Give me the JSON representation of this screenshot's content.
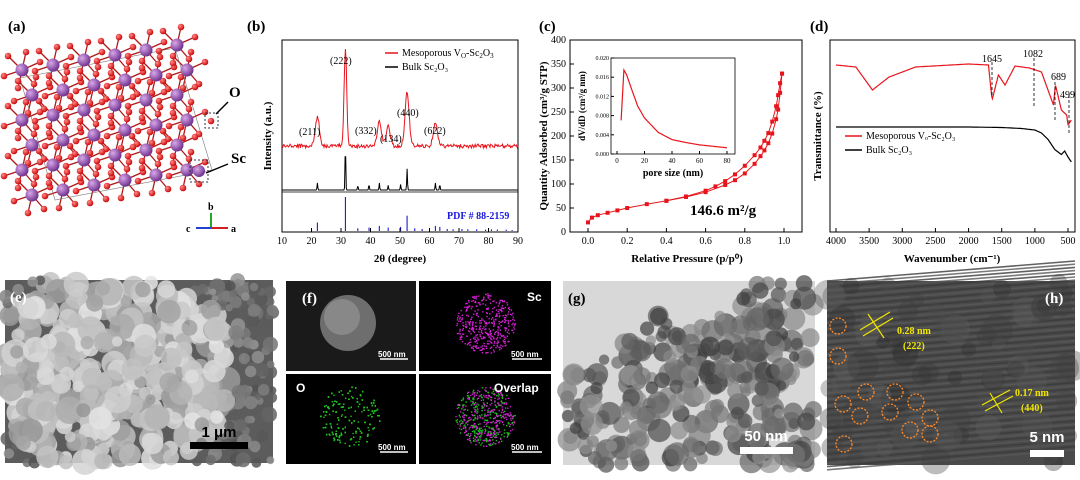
{
  "panels": {
    "a": {
      "label": "(a)",
      "atom_o": "O",
      "atom_sc": "Sc",
      "axis_b": "b",
      "axis_c": "c",
      "axis_a": "a"
    },
    "b": {
      "label": "(b)",
      "legend": [
        "Mesoporous V",
        "O",
        "-Sc",
        "2",
        "O",
        "3"
      ],
      "legend_bulk": "Bulk Sc₂O₃",
      "peaks": [
        "(222)",
        "(211)",
        "(332)",
        "(134)",
        "(440)",
        "(622)"
      ],
      "pdf": "PDF # 88-2159",
      "ylabel": "Intensity (a.u.)",
      "xlabel": "2θ (degree)",
      "xticks": [
        "10",
        "20",
        "30",
        "40",
        "50",
        "60",
        "70",
        "80",
        "90"
      ]
    },
    "c": {
      "label": "(c)",
      "ylabel": "Quantity Adsorbed (cm³/g STP)",
      "xlabel": "Relative Pressure (p/p⁰)",
      "yticks": [
        "0",
        "50",
        "100",
        "150",
        "200",
        "250",
        "300",
        "350",
        "400"
      ],
      "xticks": [
        "0.0",
        "0.2",
        "0.4",
        "0.6",
        "0.8",
        "1.0"
      ],
      "area": "146.6 m²/g",
      "inset_ylabel": "dV/dD (cm³/g nm)",
      "inset_xlabel": "pore size (nm)",
      "inset_yticks": [
        "0.000",
        "0.004",
        "0.008",
        "0.012",
        "0.016",
        "0.020"
      ],
      "inset_xticks": [
        "0",
        "20",
        "40",
        "60",
        "80"
      ]
    },
    "d": {
      "label": "(d)",
      "ylabel": "Transmittance (%)",
      "xlabel": "Wavenumber (cm⁻¹)",
      "xticks": [
        "4000",
        "3500",
        "3000",
        "2500",
        "2000",
        "1500",
        "1000",
        "500"
      ],
      "bands": [
        "1645",
        "1082",
        "689",
        "499"
      ],
      "legend_meso": "Mesoporous Vₒ-Sc₂O₃",
      "legend_bulk": "Bulk Sc₂O₃"
    },
    "e": {
      "label": "(e)",
      "scale": "1 μm"
    },
    "f": {
      "label": "(f)",
      "tiles": [
        "Sc",
        "O",
        "Overlap"
      ],
      "scale": "500 nm"
    },
    "g": {
      "label": "(g)",
      "scale": "50 nm"
    },
    "h": {
      "label": "(h)",
      "d1": "0.28 nm",
      "d1_plane": "(222)",
      "d2": "0.17 nm",
      "d2_plane": "(440)",
      "scale": "5 nm"
    }
  },
  "colors": {
    "meso": "#e8141c",
    "bulk": "#000000",
    "pdf": "#1a1adc",
    "inset": "#e8141c",
    "sc_map": "#d020d0",
    "o_map": "#20c020",
    "lattice": "#f2e600"
  },
  "chart_data": [
    {
      "type": "line",
      "panel": "b",
      "xlabel": "2θ (degree)",
      "ylabel": "Intensity (a.u.)",
      "xlim": [
        10,
        90
      ],
      "series": [
        {
          "name": "Mesoporous Vₒ-Sc₂O₃",
          "x": [
            22,
            31.5,
            43,
            46,
            52.4,
            62
          ],
          "values": [
            0.3,
            1.0,
            0.25,
            0.2,
            0.55,
            0.25
          ]
        },
        {
          "name": "Bulk Sc₂O₃",
          "x": [
            22,
            31.5,
            35.7,
            39.5,
            43,
            46,
            50.2,
            52.4,
            62,
            63.5
          ],
          "values": [
            0.15,
            1.0,
            0.1,
            0.12,
            0.15,
            0.1,
            0.12,
            0.45,
            0.15,
            0.12
          ]
        },
        {
          "name": "PDF # 88-2159",
          "x": [
            22,
            31.5,
            35.7,
            39.5,
            43,
            46,
            50.2,
            52.4,
            55,
            57.5,
            62,
            63.5,
            66,
            68,
            71,
            73,
            76,
            79,
            81,
            83,
            86,
            88
          ],
          "values": [
            0.25,
            1.0,
            0.08,
            0.1,
            0.15,
            0.1,
            0.12,
            0.45,
            0.08,
            0.06,
            0.15,
            0.12,
            0.06,
            0.05,
            0.06,
            0.05,
            0.05,
            0.04,
            0.05,
            0.04,
            0.04,
            0.03
          ]
        }
      ]
    },
    {
      "type": "scatter",
      "panel": "c",
      "xlabel": "Relative Pressure (p/p⁰)",
      "ylabel": "Quantity Adsorbed (cm³/g STP)",
      "xlim": [
        -0.1,
        1.1
      ],
      "ylim": [
        0,
        400
      ],
      "series": [
        {
          "x": [
            0.0,
            0.02,
            0.05,
            0.1,
            0.15,
            0.2,
            0.3,
            0.4,
            0.5,
            0.6,
            0.7,
            0.75,
            0.8,
            0.85,
            0.88,
            0.9,
            0.92,
            0.94,
            0.96,
            0.97,
            0.98,
            0.99
          ],
          "values": [
            20,
            30,
            35,
            40,
            45,
            50,
            58,
            65,
            73,
            83,
            98,
            108,
            122,
            142,
            158,
            170,
            185,
            205,
            235,
            255,
            290,
            330
          ]
        },
        {
          "x": [
            0.99,
            0.98,
            0.97,
            0.96,
            0.94,
            0.92,
            0.9,
            0.88,
            0.85,
            0.8,
            0.75,
            0.7,
            0.65,
            0.6,
            0.5,
            0.4
          ],
          "values": [
            330,
            310,
            285,
            262,
            230,
            206,
            190,
            176,
            160,
            138,
            120,
            106,
            95,
            86,
            74,
            65
          ]
        }
      ]
    },
    {
      "type": "line",
      "panel": "c-inset",
      "xlabel": "pore size (nm)",
      "ylabel": "dV/dD (cm³/g nm)",
      "xlim": [
        0,
        80
      ],
      "ylim": [
        0,
        0.02
      ],
      "series": [
        {
          "x": [
            3,
            5,
            7,
            10,
            15,
            20,
            30,
            40,
            50,
            60,
            70,
            80
          ],
          "values": [
            0.007,
            0.0175,
            0.0165,
            0.014,
            0.01,
            0.0075,
            0.0045,
            0.003,
            0.0024,
            0.0019,
            0.0016,
            0.0013
          ]
        }
      ]
    },
    {
      "type": "line",
      "panel": "d",
      "xlabel": "Wavenumber (cm⁻¹)",
      "ylabel": "Transmittance (%)",
      "xlim": [
        4000,
        400
      ],
      "series": [
        {
          "name": "Mesoporous Vₒ-Sc₂O₃",
          "x": [
            4000,
            3700,
            3450,
            3200,
            2800,
            2000,
            1700,
            1645,
            1550,
            1450,
            1300,
            1082,
            900,
            720,
            689,
            600,
            520,
            499,
            450
          ],
          "values": [
            0.95,
            0.93,
            0.7,
            0.83,
            0.93,
            0.96,
            0.95,
            0.6,
            0.85,
            0.75,
            0.94,
            0.92,
            0.88,
            0.55,
            0.75,
            0.5,
            0.45,
            0.35,
            0.4
          ]
        },
        {
          "name": "Bulk Sc₂O₃",
          "x": [
            4000,
            3000,
            2000,
            1500,
            1200,
            1000,
            900,
            800,
            700,
            650,
            600,
            550,
            500,
            450
          ],
          "values": [
            0.5,
            0.5,
            0.5,
            0.49,
            0.47,
            0.44,
            0.38,
            0.25,
            0.05,
            0.0,
            -0.05,
            0.02,
            -0.1,
            -0.2
          ]
        }
      ]
    }
  ]
}
